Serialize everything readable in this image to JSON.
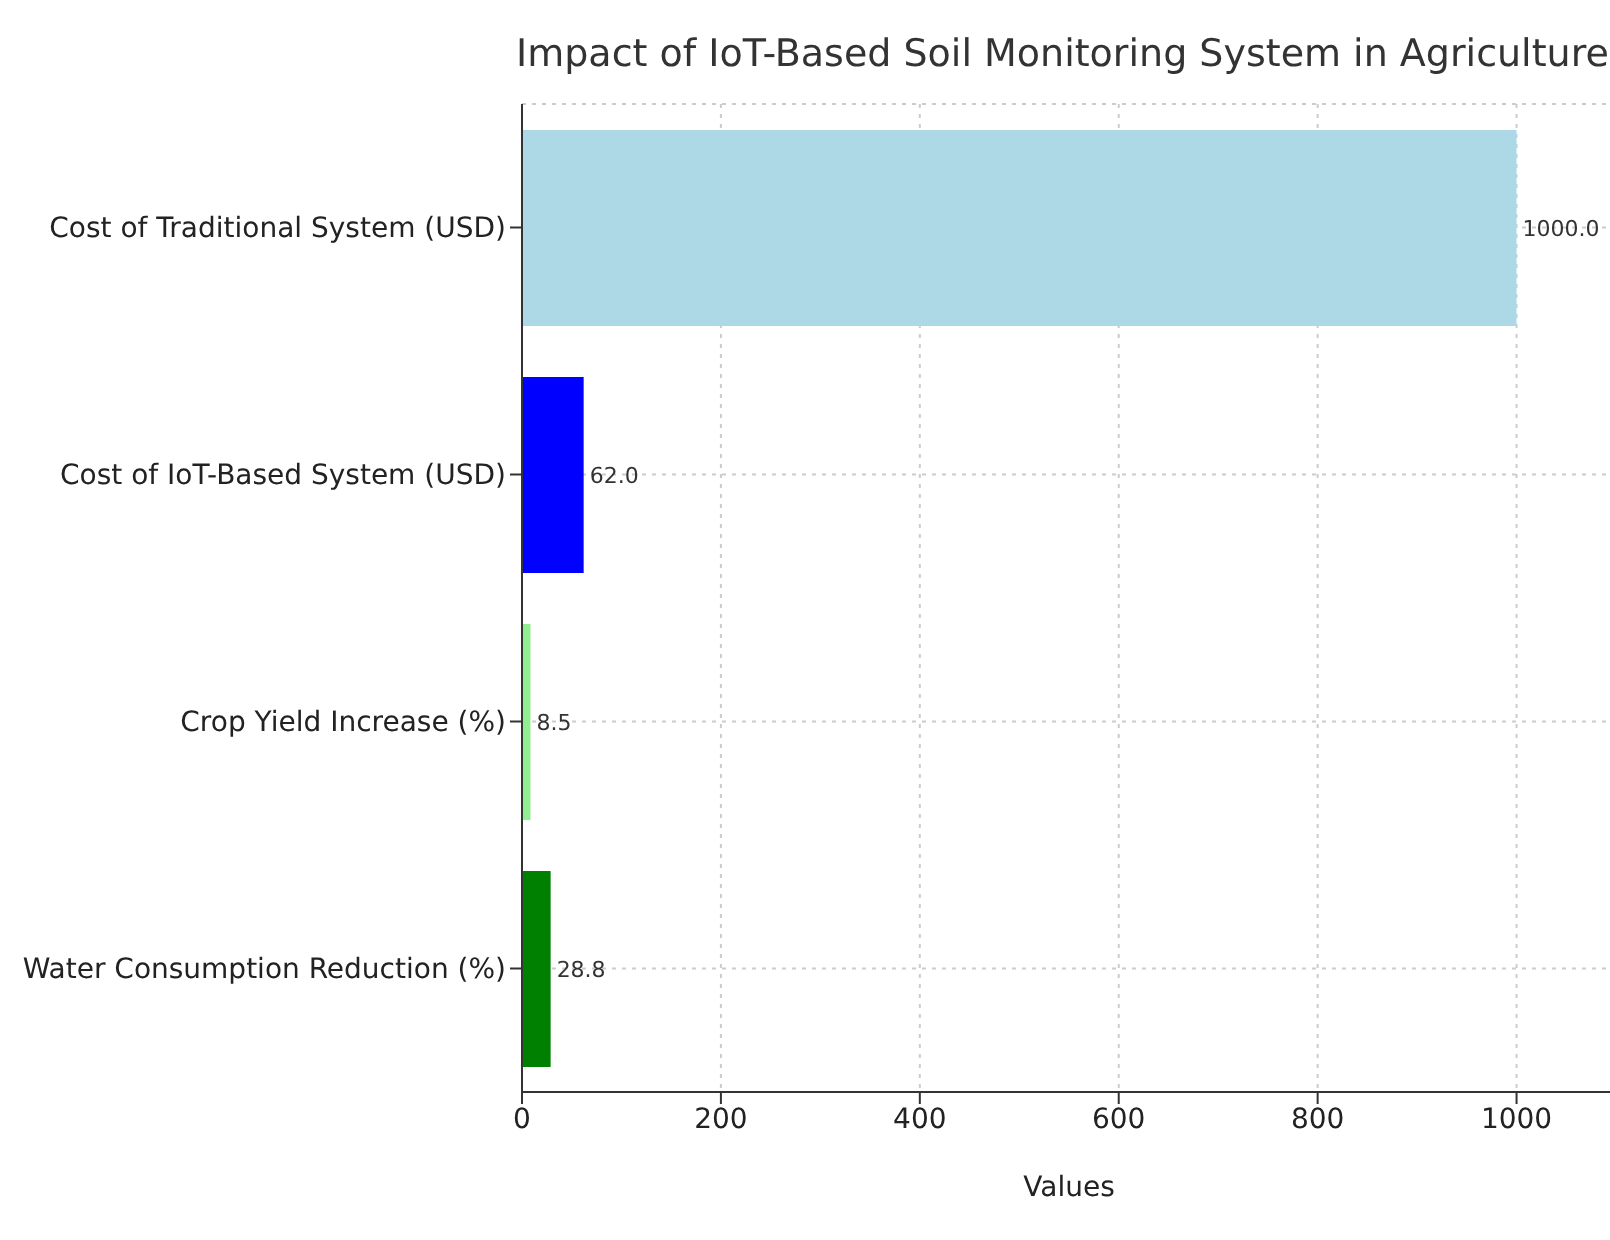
{
  "chart_data": {
    "type": "bar",
    "orientation": "horizontal",
    "title": "Impact of IoT-Based Soil Monitoring System in Agriculture",
    "xlabel": "Values",
    "categories": [
      "Cost of Traditional System (USD)",
      "Cost of IoT-Based System (USD)",
      "Crop Yield Increase (%)",
      "Water Consumption Reduction (%)"
    ],
    "values": [
      1000,
      62,
      8.5,
      28.8
    ],
    "colors": [
      "#add8e6",
      "#0000ff",
      "#90ee90",
      "#008000"
    ],
    "value_labels": [
      "1000.0",
      "62.0",
      "8.5",
      "28.8"
    ],
    "xlim": [
      0,
      1100
    ],
    "xticks": [
      0,
      200,
      400,
      600,
      800,
      1000
    ],
    "grid": true
  }
}
